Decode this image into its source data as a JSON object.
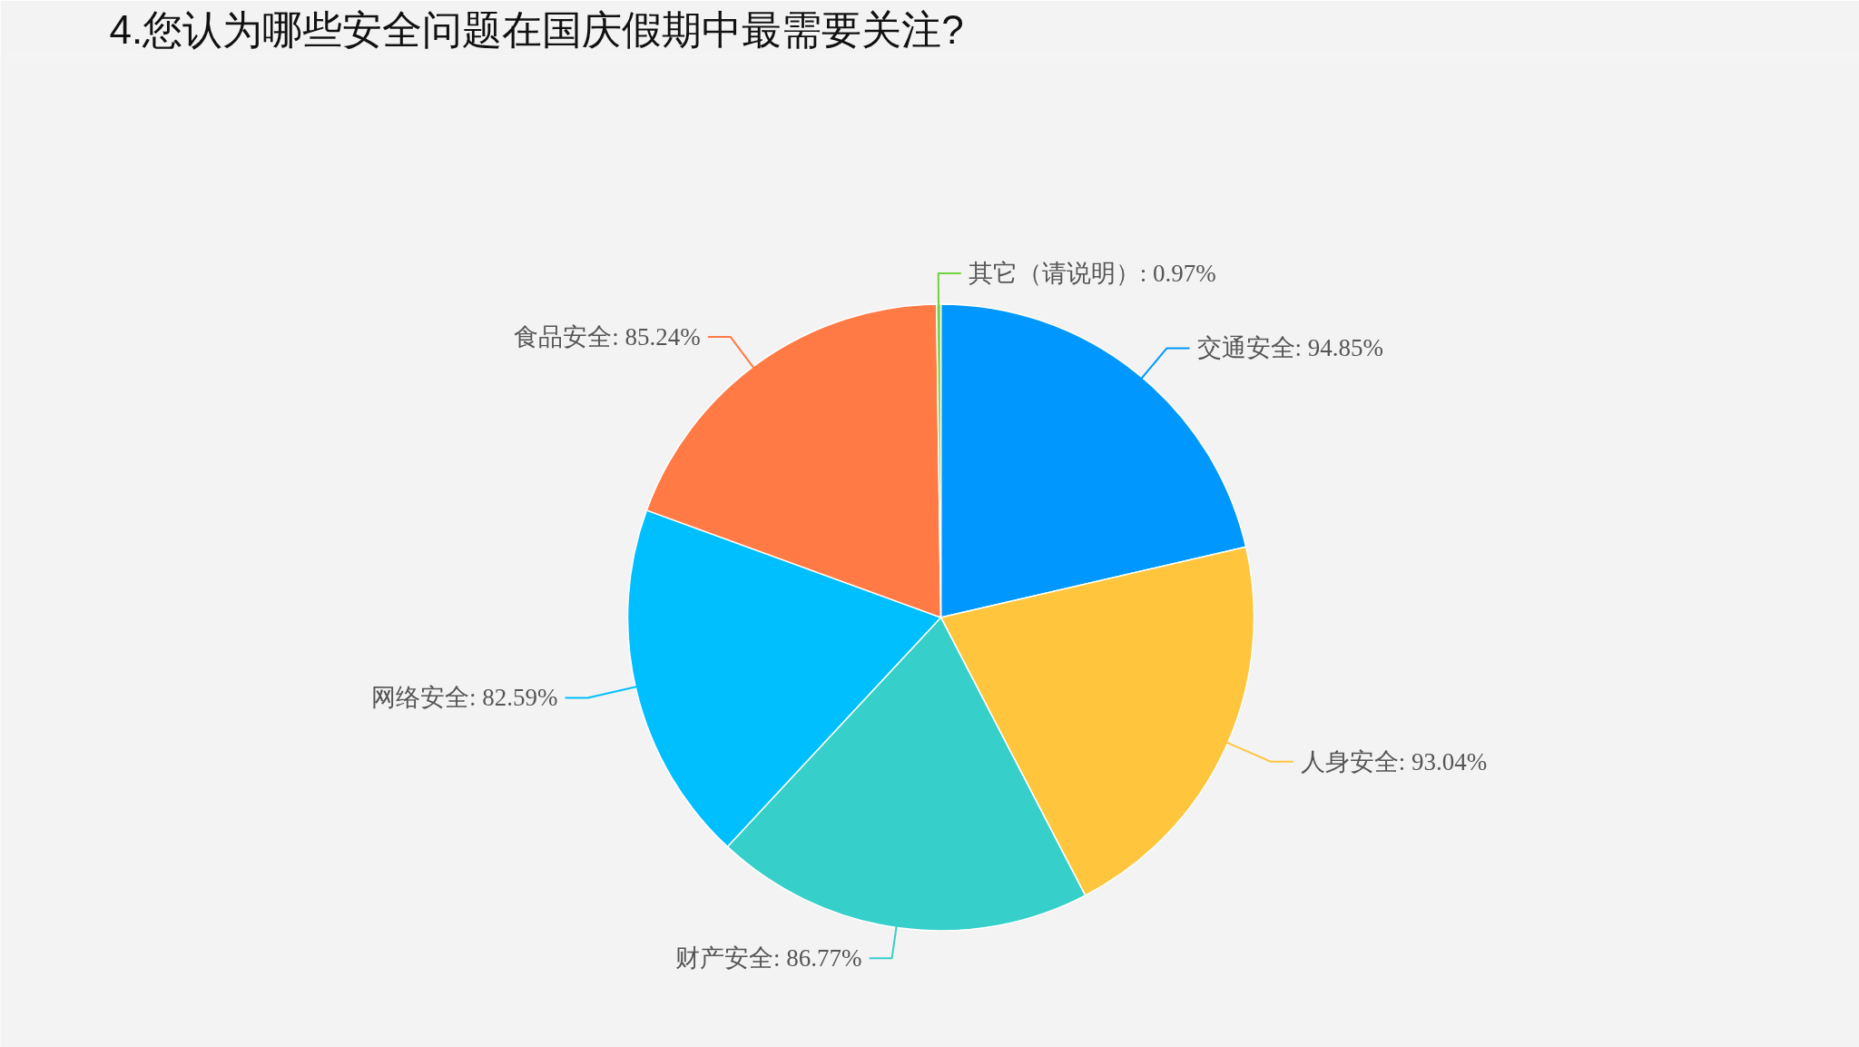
{
  "chart_data": {
    "type": "pie",
    "title": "4.您认为哪些安全问题在国庆假期中最需要关注?",
    "categories": [
      "交通安全",
      "人身安全",
      "财产安全",
      "网络安全",
      "食品安全",
      "其它（请说明）"
    ],
    "values": [
      94.85,
      93.04,
      86.77,
      82.59,
      85.24,
      0.97
    ],
    "value_labels": [
      "94.85%",
      "93.04%",
      "86.77%",
      "82.59%",
      "85.24%",
      "0.97%"
    ],
    "colors": [
      "#0098fe",
      "#ffc53d",
      "#36cfc9",
      "#00bfff",
      "#ff7a45",
      "#73d13d"
    ]
  }
}
